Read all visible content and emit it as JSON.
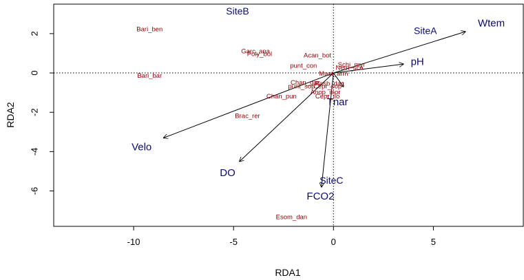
{
  "chart_data": {
    "type": "scatter",
    "title": "",
    "xlabel": "RDA1",
    "ylabel": "RDA2",
    "xlim": [
      -14,
      9.5
    ],
    "ylim": [
      -7.8,
      3.5
    ],
    "x_ticks": [
      -10,
      -5,
      0,
      5
    ],
    "y_ticks": [
      -6,
      -4,
      -2,
      0,
      2
    ],
    "reference_lines": {
      "x": 0,
      "y": 0,
      "style": "dotted"
    },
    "colors": {
      "species": "#8b0000",
      "sites": "#0a0a6b",
      "arrows": "#000000"
    },
    "sites": [
      {
        "label": "SiteB",
        "x": -4.8,
        "y": 3.1
      },
      {
        "label": "SiteA",
        "x": 4.6,
        "y": 2.1
      },
      {
        "label": "SiteC",
        "x": -0.1,
        "y": -5.5
      }
    ],
    "environmental_vectors": [
      {
        "label": "Wtem",
        "x": 6.6,
        "y": 2.1,
        "label_x": 7.9,
        "label_y": 2.5
      },
      {
        "label": "pH",
        "x": 3.5,
        "y": 0.45,
        "label_x": 4.2,
        "label_y": 0.55
      },
      {
        "label": "Velo",
        "x": -8.5,
        "y": -3.3,
        "label_x": -9.6,
        "label_y": -3.8
      },
      {
        "label": "DO",
        "x": -4.7,
        "y": -4.5,
        "label_x": -5.3,
        "label_y": -5.1
      },
      {
        "label": "FCO2",
        "x": -0.6,
        "y": -5.8,
        "label_x": -0.65,
        "label_y": -6.3
      },
      {
        "label": "Tnar",
        "x": 0.5,
        "y": -0.7,
        "label_x": 0.2,
        "label_y": -1.5
      }
    ],
    "species": [
      {
        "label": "Bari_ben",
        "x": -9.2,
        "y": 2.2
      },
      {
        "label": "Bari_bar",
        "x": -9.2,
        "y": -0.15
      },
      {
        "label": "Garc_ana",
        "x": -3.9,
        "y": 1.08
      },
      {
        "label": "Poly_bol",
        "x": -3.7,
        "y": 0.95
      },
      {
        "label": "Acan_bot",
        "x": -0.8,
        "y": 0.88
      },
      {
        "label": "punt_con",
        "x": -1.5,
        "y": 0.35
      },
      {
        "label": "Schi_myr",
        "x": 0.9,
        "y": 0.4
      },
      {
        "label": "Nem_sca",
        "x": 0.8,
        "y": 0.25
      },
      {
        "label": "Mast_arm",
        "x": 0.0,
        "y": -0.05
      },
      {
        "label": "Chan_gac",
        "x": -1.4,
        "y": -0.5
      },
      {
        "label": "Rasb_dac",
        "x": -0.2,
        "y": -0.55
      },
      {
        "label": "punt_sop",
        "x": -1.6,
        "y": -0.7
      },
      {
        "label": "Cepr_sop",
        "x": -0.3,
        "y": -0.7
      },
      {
        "label": "Anop_mor",
        "x": -0.4,
        "y": -1.0
      },
      {
        "label": "Chan_pun",
        "x": -2.6,
        "y": -1.2
      },
      {
        "label": "Cepr_ilo",
        "x": -0.3,
        "y": -1.2
      },
      {
        "label": "Brac_rer",
        "x": -4.3,
        "y": -2.2
      },
      {
        "label": "Esom_dan",
        "x": -2.1,
        "y": -7.35
      }
    ]
  }
}
